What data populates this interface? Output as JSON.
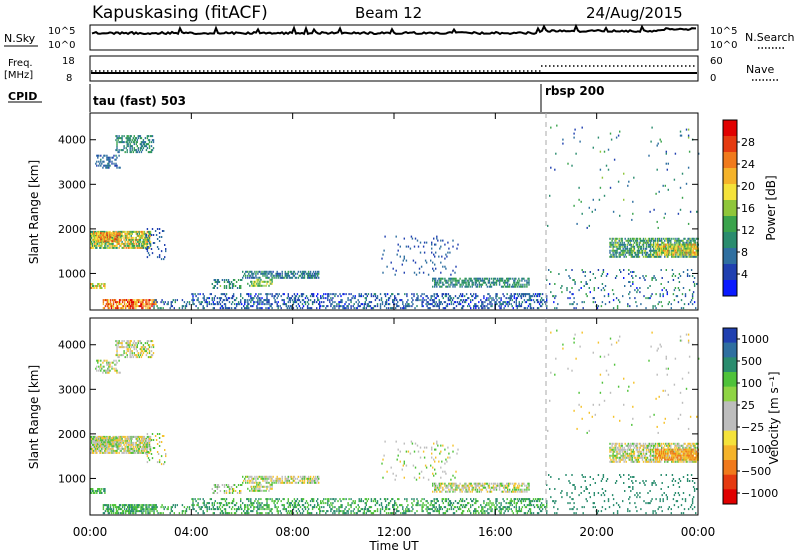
{
  "header": {
    "station": "Kapuskasing (fitACF)",
    "beam": "Beam 12",
    "date": "24/Aug/2015"
  },
  "summary": {
    "nsky_label": "N.Sky",
    "nsearch_label": "N.Search",
    "log_top": "10^5",
    "log_bottom": "10^0",
    "freq_label": "Freq.",
    "freq_unit": "[MHz]",
    "freq_ticks": [
      "18",
      "8"
    ],
    "nave_label": "Nave",
    "nave_ticks": [
      "60",
      "0"
    ],
    "cpid_label": "CPID",
    "cpid_segments": [
      {
        "label": "tau (fast) 503",
        "start_hour": 0
      },
      {
        "label": "rbsp 200",
        "start_hour": 18
      }
    ]
  },
  "chart_data": [
    {
      "type": "heatmap",
      "name": "power-panel",
      "ylabel": "Slant Range [km]",
      "xlabel": "Time UT",
      "x_ticks": [
        "00:00",
        "04:00",
        "08:00",
        "12:00",
        "16:00",
        "20:00",
        "00:00"
      ],
      "x_range_hours": [
        0,
        24
      ],
      "y_ticks": [
        "1000",
        "2000",
        "3000",
        "4000"
      ],
      "y_range_km": [
        180,
        4600
      ],
      "colorbar": {
        "label": "Power [dB]",
        "ticks": [
          "28",
          "24",
          "20",
          "16",
          "12",
          "8",
          "4"
        ],
        "range": [
          0,
          32
        ]
      },
      "marker_hour": 18
    },
    {
      "type": "heatmap",
      "name": "velocity-panel",
      "ylabel": "Slant Range [km]",
      "xlabel": "Time UT",
      "x_ticks": [
        "00:00",
        "04:00",
        "08:00",
        "12:00",
        "16:00",
        "20:00",
        "00:00"
      ],
      "x_range_hours": [
        0,
        24
      ],
      "y_ticks": [
        "1000",
        "2000",
        "3000",
        "4000"
      ],
      "y_range_km": [
        180,
        4600
      ],
      "colorbar": {
        "label": "Velocity [m s⁻¹]",
        "ticks": [
          "1000",
          "500",
          "100",
          "25",
          "−25",
          "−100",
          "−500",
          "−1000"
        ]
      },
      "marker_hour": 18
    }
  ],
  "scatter_regions": [
    {
      "t0": 0.0,
      "t1": 2.4,
      "r0": 1550,
      "r1": 1950,
      "dens": 0.75,
      "pow": 17,
      "vel": 0,
      "jit": 4
    },
    {
      "t0": 0.2,
      "t1": 1.2,
      "r0": 1700,
      "r1": 1900,
      "dens": 0.7,
      "pow": 22,
      "vel": 0,
      "jit": 3
    },
    {
      "t0": 0.0,
      "t1": 0.6,
      "r0": 650,
      "r1": 780,
      "dens": 0.7,
      "pow": 19,
      "vel": 100,
      "jit": 3
    },
    {
      "t0": 0.5,
      "t1": 2.6,
      "r0": 200,
      "r1": 420,
      "dens": 0.6,
      "pow": 25,
      "vel": 100,
      "jit": 3
    },
    {
      "t0": 0.2,
      "t1": 1.2,
      "r0": 3350,
      "r1": 3650,
      "dens": 0.35,
      "pow": 7,
      "vel": 0,
      "jit": 1
    },
    {
      "t0": 1.0,
      "t1": 2.5,
      "r0": 3700,
      "r1": 4100,
      "dens": 0.45,
      "pow": 10,
      "vel": 0,
      "jit": 2
    },
    {
      "t0": 2.2,
      "t1": 3.0,
      "r0": 1300,
      "r1": 2000,
      "dens": 0.15,
      "pow": 6,
      "vel": 0,
      "jit": 1
    },
    {
      "t0": 2.5,
      "t1": 4.0,
      "r0": 200,
      "r1": 420,
      "dens": 0.2,
      "pow": 8,
      "vel": 100,
      "jit": 2
    },
    {
      "t0": 4.8,
      "t1": 6.0,
      "r0": 650,
      "r1": 850,
      "dens": 0.4,
      "pow": 11,
      "vel": 25,
      "jit": 2
    },
    {
      "t0": 6.0,
      "t1": 9.0,
      "r0": 880,
      "r1": 1020,
      "dens": 0.55,
      "pow": 9,
      "vel": 0,
      "jit": 2
    },
    {
      "t0": 6.2,
      "t1": 7.2,
      "r0": 700,
      "r1": 880,
      "dens": 0.5,
      "pow": 15,
      "vel": 0,
      "jit": 2
    },
    {
      "t0": 4.0,
      "t1": 18.0,
      "r0": 200,
      "r1": 520,
      "dens": 0.32,
      "pow": 6,
      "vel": 100,
      "jit": 2
    },
    {
      "t0": 11.5,
      "t1": 14.5,
      "r0": 950,
      "r1": 1850,
      "dens": 0.06,
      "pow": 6,
      "vel": 0,
      "jit": 1
    },
    {
      "t0": 13.5,
      "t1": 17.3,
      "r0": 680,
      "r1": 880,
      "dens": 0.55,
      "pow": 10,
      "vel": 0,
      "jit": 2
    },
    {
      "t0": 18.0,
      "t1": 24.0,
      "r0": 200,
      "r1": 1100,
      "dens": 0.08,
      "pow": 8,
      "vel": 300,
      "jit": 3
    },
    {
      "t0": 20.5,
      "t1": 24.0,
      "r0": 1350,
      "r1": 1800,
      "dens": 0.6,
      "pow": 12,
      "vel": 0,
      "jit": 3
    },
    {
      "t0": 22.3,
      "t1": 24.0,
      "r0": 1400,
      "r1": 1650,
      "dens": 0.7,
      "pow": 19,
      "vel": -100,
      "jit": 3
    },
    {
      "t0": 18.0,
      "t1": 24.0,
      "r0": 2000,
      "r1": 4300,
      "dens": 0.015,
      "pow": 9,
      "vel": 0,
      "jit": 3
    }
  ]
}
